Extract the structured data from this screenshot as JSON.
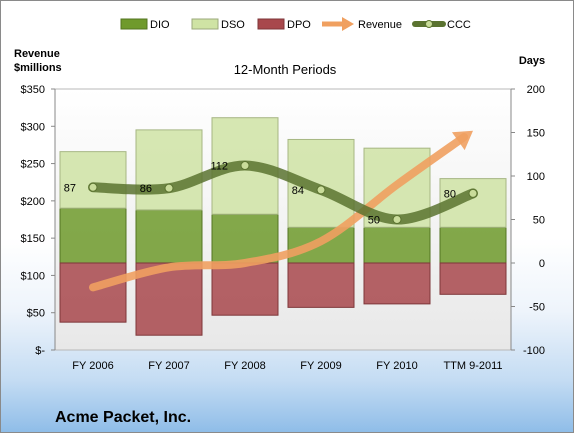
{
  "chart_data": {
    "type": "bar",
    "title": "12-Month Periods",
    "company": "Acme Packet, Inc.",
    "y_left_label_line1": "Revenue",
    "y_left_label_line2": "$millions",
    "y_right_label": "Days",
    "categories": [
      "FY 2006",
      "FY 2007",
      "FY 2008",
      "FY 2009",
      "FY 2010",
      "TTM 9-2011"
    ],
    "left_axis": {
      "ylim": [
        0,
        350
      ],
      "ticks": [
        0,
        50,
        100,
        150,
        200,
        250,
        300,
        350
      ],
      "tick_labels": [
        "$-",
        "$50",
        "$100",
        "$150",
        "$200",
        "$250",
        "$300",
        "$350"
      ]
    },
    "right_axis": {
      "ylim": [
        -100,
        200
      ],
      "ticks": [
        -100,
        -50,
        0,
        50,
        100,
        150,
        200
      ],
      "tick_labels": [
        "-100",
        "-50",
        "0",
        "50",
        "100",
        "150",
        "200"
      ]
    },
    "grid": false,
    "legend_position": "top",
    "series": [
      {
        "name": "DIO",
        "type": "stacked-bar",
        "axis": "right",
        "values": [
          63,
          61,
          56,
          41,
          41,
          41
        ],
        "color": "#6f9a2c"
      },
      {
        "name": "DSO",
        "type": "stacked-bar",
        "axis": "right",
        "values": [
          65,
          92,
          111,
          101,
          91,
          56
        ],
        "color": "#cfe3a4"
      },
      {
        "name": "DPO",
        "type": "bar-below-zero",
        "axis": "right",
        "values": [
          -68,
          -83,
          -60,
          -51,
          -47,
          -36
        ],
        "color": "#a8484c"
      },
      {
        "name": "Revenue",
        "type": "arrow-line",
        "axis": "right",
        "values": [
          -28,
          -5,
          0,
          25,
          90,
          152
        ],
        "color": "#f0a060"
      },
      {
        "name": "CCC",
        "type": "line",
        "axis": "right",
        "values": [
          87,
          86,
          112,
          84,
          50,
          80
        ],
        "color": "#5b7330"
      }
    ],
    "ccc_labels": [
      "87",
      "86",
      "112",
      "84",
      "50",
      "80"
    ]
  }
}
